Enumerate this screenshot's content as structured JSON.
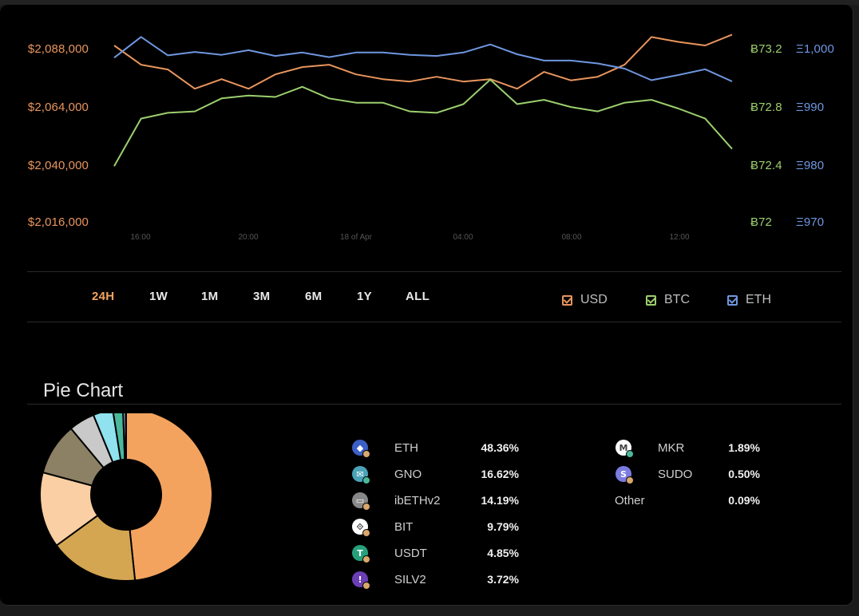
{
  "chart_data": [
    {
      "type": "line",
      "title": "",
      "x": [
        "15:00",
        "16:00",
        "17:00",
        "18:00",
        "19:00",
        "20:00",
        "21:00",
        "22:00",
        "23:00",
        "00:00",
        "01:00",
        "02:00",
        "03:00",
        "04:00",
        "05:00",
        "06:00",
        "07:00",
        "08:00",
        "09:00",
        "10:00",
        "11:00",
        "12:00",
        "13:00",
        "14:00"
      ],
      "x_tick_labels": [
        "16:00",
        "20:00",
        "18 of Apr",
        "04:00",
        "08:00",
        "12:00"
      ],
      "axes": {
        "usd": {
          "ticks": [
            "$2,088,000",
            "$2,064,000",
            "$2,040,000",
            "$2,016,000"
          ],
          "ylim": [
            2016000,
            2088000
          ]
        },
        "btc": {
          "ticks": [
            "Ƀ73.2",
            "Ƀ72.8",
            "Ƀ72.4",
            "Ƀ72"
          ],
          "ylim": [
            72,
            73.2
          ]
        },
        "eth": {
          "ticks": [
            "Ξ1,000",
            "Ξ990",
            "Ξ980",
            "Ξ970"
          ],
          "ylim": [
            970,
            1000
          ]
        }
      },
      "series": [
        {
          "name": "USD",
          "axis": "usd",
          "color": "#e8955d",
          "values": [
            2089000,
            2081000,
            2079000,
            2071000,
            2075000,
            2071000,
            2077000,
            2080000,
            2081000,
            2077000,
            2075000,
            2074000,
            2076000,
            2074000,
            2075000,
            2071000,
            2078000,
            2074500,
            2076000,
            2081000,
            2092500,
            2090500,
            2089000,
            2093500
          ]
        },
        {
          "name": "BTC",
          "axis": "btc",
          "color": "#9ccf6e",
          "values": [
            72.38,
            72.71,
            72.75,
            72.76,
            72.85,
            72.87,
            72.86,
            72.93,
            72.85,
            72.82,
            72.82,
            72.76,
            72.75,
            72.81,
            72.98,
            72.81,
            72.84,
            72.79,
            72.76,
            72.82,
            72.84,
            72.78,
            72.71,
            72.5
          ]
        },
        {
          "name": "ETH",
          "axis": "eth",
          "color": "#6f97e0",
          "values": [
            998.3,
            1001.9,
            998.7,
            999.3,
            998.8,
            999.6,
            998.6,
            999.2,
            998.4,
            999.2,
            999.2,
            998.8,
            998.6,
            999.2,
            1000.6,
            998.9,
            997.8,
            997.8,
            997.3,
            996.4,
            994.4,
            995.3,
            996.3,
            994.2
          ]
        }
      ],
      "ranges": [
        "24H",
        "1W",
        "1M",
        "3M",
        "6M",
        "1Y",
        "ALL"
      ],
      "active_range": "24H",
      "legend": [
        {
          "label": "USD",
          "color": "#e8955d",
          "checked": true
        },
        {
          "label": "BTC",
          "color": "#9ccf6e",
          "checked": true
        },
        {
          "label": "ETH",
          "color": "#6f97e0",
          "checked": true
        }
      ]
    },
    {
      "type": "pie",
      "title": "Pie Chart",
      "slices": [
        {
          "label": "ETH",
          "value": 48.36,
          "pct": "48.36%",
          "color": "#f4a35f",
          "icon": "eth-icon"
        },
        {
          "label": "GNO",
          "value": 16.62,
          "pct": "16.62%",
          "color": "#d4a652",
          "icon": "gno-icon"
        },
        {
          "label": "ibETHv2",
          "value": 14.19,
          "pct": "14.19%",
          "color": "#f9cfa3",
          "icon": "ibethv2-icon"
        },
        {
          "label": "BIT",
          "value": 9.79,
          "pct": "9.79%",
          "color": "#8c8065",
          "icon": "bit-icon"
        },
        {
          "label": "USDT",
          "value": 4.85,
          "pct": "4.85%",
          "color": "#c9c9c9",
          "icon": "usdt-icon"
        },
        {
          "label": "SILV2",
          "value": 3.72,
          "pct": "3.72%",
          "color": "#8fe2ee",
          "icon": "silv2-icon"
        },
        {
          "label": "MKR",
          "value": 1.89,
          "pct": "1.89%",
          "color": "#4bb89b",
          "icon": "mkr-icon"
        },
        {
          "label": "SUDO",
          "value": 0.5,
          "pct": "0.50%",
          "color": "#a9c9f3",
          "icon": "sudo-icon"
        },
        {
          "label": "Other",
          "value": 0.09,
          "pct": "0.09%",
          "color": "#666666",
          "icon": ""
        }
      ]
    }
  ]
}
